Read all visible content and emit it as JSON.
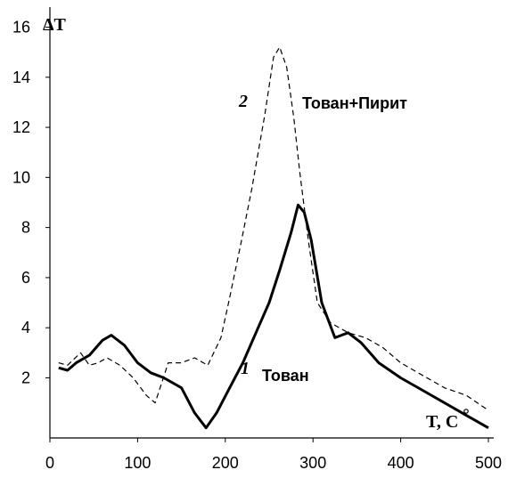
{
  "chart_data": {
    "type": "line",
    "title": "",
    "ylabel": "ΔT",
    "xlabel": "T,  C",
    "xlim": [
      0,
      500
    ],
    "ylim": [
      -0.4,
      16.8
    ],
    "xticks": [
      0,
      100,
      200,
      300,
      400,
      500
    ],
    "yticks": [
      2,
      4,
      6,
      8,
      10,
      12,
      14,
      16
    ],
    "grid": false,
    "series": [
      {
        "name": "Тован",
        "number": "1",
        "style": "solid",
        "color": "#000000",
        "x": [
          10,
          20,
          30,
          45,
          60,
          70,
          85,
          100,
          115,
          130,
          150,
          165,
          178,
          190,
          205,
          220,
          235,
          250,
          262,
          275,
          283,
          290,
          298,
          310,
          325,
          340,
          355,
          375,
          400,
          425,
          450,
          475,
          500
        ],
        "y": [
          2.4,
          2.3,
          2.6,
          2.9,
          3.5,
          3.7,
          3.3,
          2.6,
          2.2,
          2.0,
          1.6,
          0.6,
          0.0,
          0.6,
          1.6,
          2.6,
          3.8,
          5.0,
          6.3,
          7.8,
          8.9,
          8.6,
          7.5,
          5.0,
          3.6,
          3.8,
          3.4,
          2.6,
          2.0,
          1.5,
          1.0,
          0.5,
          0.0
        ]
      },
      {
        "name": "Тован+Пирит",
        "number": "2",
        "style": "dashed",
        "color": "#000000",
        "x": [
          10,
          20,
          35,
          45,
          55,
          65,
          80,
          95,
          110,
          120,
          135,
          150,
          165,
          180,
          195,
          205,
          218,
          230,
          245,
          255,
          262,
          270,
          278,
          285,
          295,
          305,
          320,
          340,
          360,
          380,
          400,
          425,
          450,
          475,
          500
        ],
        "y": [
          2.6,
          2.5,
          3.0,
          2.5,
          2.6,
          2.8,
          2.5,
          2.0,
          1.3,
          1.0,
          2.6,
          2.6,
          2.8,
          2.5,
          3.6,
          5.2,
          7.4,
          9.5,
          12.5,
          14.8,
          15.2,
          14.4,
          12.4,
          10.2,
          7.4,
          5.0,
          4.2,
          3.8,
          3.6,
          3.2,
          2.6,
          2.1,
          1.6,
          1.3,
          0.7
        ]
      }
    ]
  }
}
